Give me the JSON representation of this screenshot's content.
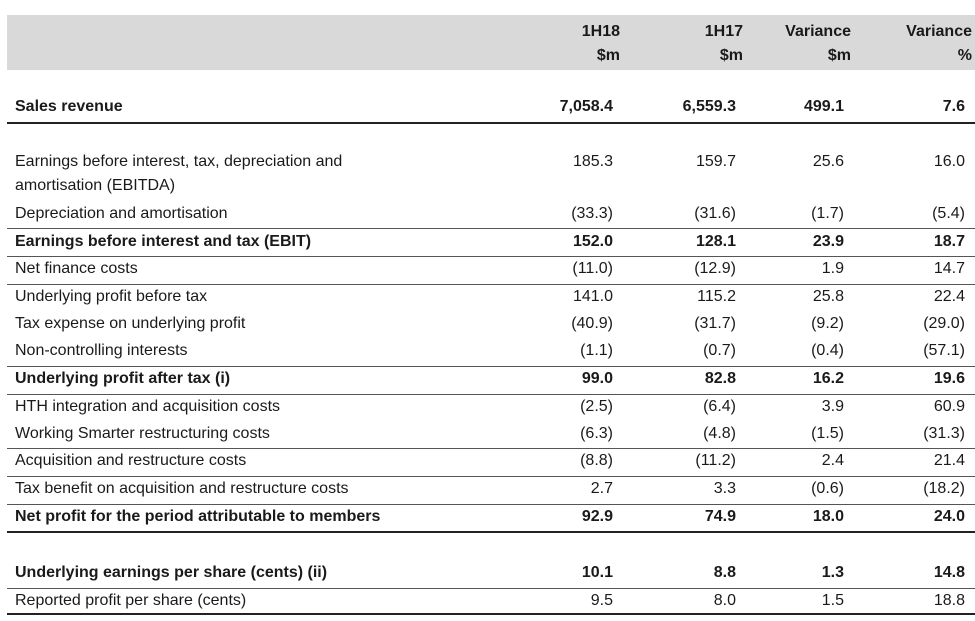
{
  "header": {
    "col1": [
      "1H18",
      "$m"
    ],
    "col2": [
      "1H17",
      "$m"
    ],
    "col3": [
      "Variance",
      "$m"
    ],
    "col4": [
      "Variance",
      "%"
    ]
  },
  "rows": [
    {
      "label": "Sales revenue",
      "v": [
        "7,058.4",
        "6,559.3",
        "499.1",
        "7.6"
      ],
      "bold": true
    },
    {
      "label": "Earnings before interest, tax, depreciation and",
      "label2": "amortisation (EBITDA)",
      "v": [
        "185.3",
        "159.7",
        "25.6",
        "16.0"
      ]
    },
    {
      "label": "Depreciation and amortisation",
      "v": [
        "(33.3)",
        "(31.6)",
        "(1.7)",
        "(5.4)"
      ]
    },
    {
      "label": "Earnings before interest and tax (EBIT)",
      "v": [
        "152.0",
        "128.1",
        "23.9",
        "18.7"
      ],
      "bold": true
    },
    {
      "label": "Net finance costs",
      "v": [
        "(11.0)",
        "(12.9)",
        "1.9",
        "14.7"
      ]
    },
    {
      "label": "Underlying profit before tax",
      "v": [
        "141.0",
        "115.2",
        "25.8",
        "22.4"
      ]
    },
    {
      "label": "Tax expense on underlying profit",
      "v": [
        "(40.9)",
        "(31.7)",
        "(9.2)",
        "(29.0)"
      ]
    },
    {
      "label": "Non-controlling interests",
      "v": [
        "(1.1)",
        "(0.7)",
        "(0.4)",
        "(57.1)"
      ]
    },
    {
      "label": "Underlying profit after tax (i)",
      "v": [
        "99.0",
        "82.8",
        "16.2",
        "19.6"
      ],
      "bold": true
    },
    {
      "label": "HTH integration and acquisition costs",
      "v": [
        "(2.5)",
        "(6.4)",
        "3.9",
        "60.9"
      ]
    },
    {
      "label": "Working Smarter restructuring costs",
      "v": [
        "(6.3)",
        "(4.8)",
        "(1.5)",
        "(31.3)"
      ]
    },
    {
      "label": "Acquisition and restructure costs",
      "v": [
        "(8.8)",
        "(11.2)",
        "2.4",
        "21.4"
      ]
    },
    {
      "label": "Tax benefit on acquisition and restructure costs",
      "v": [
        "2.7",
        "3.3",
        "(0.6)",
        "(18.2)"
      ]
    },
    {
      "label": "Net profit for the period attributable to members",
      "v": [
        "92.9",
        "74.9",
        "18.0",
        "24.0"
      ],
      "bold": true
    },
    {
      "label": "Underlying earnings per share (cents) (ii)",
      "v": [
        "10.1",
        "8.8",
        "1.3",
        "14.8"
      ],
      "bold": true
    },
    {
      "label": "Reported profit per share (cents)",
      "v": [
        "9.5",
        "8.0",
        "1.5",
        "18.8"
      ]
    }
  ]
}
